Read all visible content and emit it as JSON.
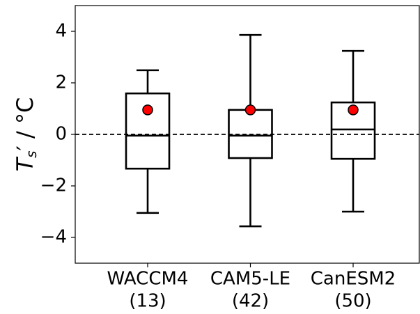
{
  "chart_data": {
    "type": "box",
    "ylabel": {
      "symbol": "T",
      "subscript": "s",
      "rest": "′ / °C"
    },
    "categories": [
      "WACCM4",
      "CAM5-LE",
      "CanESM2"
    ],
    "sublabels": [
      "(13)",
      "(42)",
      "(50)"
    ],
    "boxes": [
      {
        "whisker_low": -3.05,
        "q1": -1.33,
        "median": -0.05,
        "q3": 1.59,
        "whisker_high": 2.49
      },
      {
        "whisker_low": -3.57,
        "q1": -0.92,
        "median": -0.05,
        "q3": 0.95,
        "whisker_high": 3.86
      },
      {
        "whisker_low": -3.0,
        "q1": -0.95,
        "median": 0.19,
        "q3": 1.24,
        "whisker_high": 3.24
      }
    ],
    "points": [
      0.95,
      0.95,
      0.95
    ],
    "point_color": "#ff0000",
    "box_color": "#000000",
    "hline": 0,
    "ylim": [
      -5,
      5
    ],
    "yticks": [
      {
        "value": -4,
        "label": "−4"
      },
      {
        "value": -2,
        "label": "−2"
      },
      0,
      2,
      4
    ]
  }
}
